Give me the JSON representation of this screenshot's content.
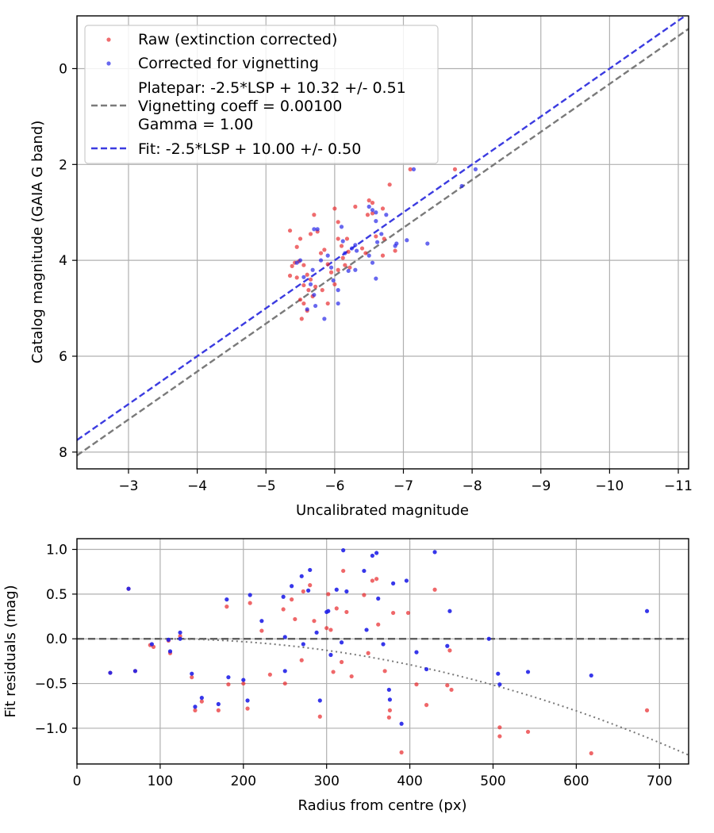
{
  "chart_data": [
    {
      "type": "scatter",
      "title": "",
      "xlabel": "Uncalibrated magnitude",
      "ylabel": "Catalog magnitude (GAIA G band)",
      "xlim": [
        -2.25,
        -11.15
      ],
      "ylim": [
        8.35,
        -1.1
      ],
      "x_inverted": true,
      "y_inverted": true,
      "grid": true,
      "legend_position": "upper-left",
      "x_ticks": [
        -3,
        -4,
        -5,
        -6,
        -7,
        -8,
        -9,
        -10,
        -11
      ],
      "x_tick_labels": [
        "−3",
        "−4",
        "−5",
        "−6",
        "−7",
        "−8",
        "−9",
        "−10",
        "−11"
      ],
      "y_ticks": [
        0,
        2,
        4,
        6,
        8
      ],
      "y_tick_labels": [
        "0",
        "2",
        "4",
        "6",
        "8"
      ],
      "colors": {
        "raw": "#e8262a",
        "corrected": "#2121e8",
        "platepar": "#7a7a7a",
        "fit": "#3b3be0"
      },
      "series": [
        {
          "name": "Raw (extinction corrected)",
          "kind": "points",
          "color": "#e8262a",
          "points": [
            [
              -5.35,
              3.38
            ],
            [
              -5.5,
              3.55
            ],
            [
              -5.45,
              3.72
            ],
            [
              -5.65,
              3.45
            ],
            [
              -5.7,
              3.05
            ],
            [
              -5.75,
              3.4
            ],
            [
              -5.42,
              4.05
            ],
            [
              -5.38,
              4.12
            ],
            [
              -5.48,
              4.02
            ],
            [
              -5.55,
              4.1
            ],
            [
              -5.35,
              4.32
            ],
            [
              -5.45,
              4.36
            ],
            [
              -5.6,
              4.3
            ],
            [
              -5.55,
              4.52
            ],
            [
              -5.62,
              4.62
            ],
            [
              -5.5,
              4.82
            ],
            [
              -5.55,
              4.9
            ],
            [
              -5.6,
              5.05
            ],
            [
              -5.52,
              5.22
            ],
            [
              -5.68,
              4.75
            ],
            [
              -5.72,
              4.55
            ],
            [
              -5.65,
              4.4
            ],
            [
              -5.8,
              3.85
            ],
            [
              -5.85,
              3.78
            ],
            [
              -5.9,
              4.08
            ],
            [
              -5.95,
              4.25
            ],
            [
              -5.82,
              4.62
            ],
            [
              -6.0,
              2.92
            ],
            [
              -6.05,
              3.2
            ],
            [
              -6.05,
              3.55
            ],
            [
              -6.1,
              3.7
            ],
            [
              -6.12,
              3.95
            ],
            [
              -6.05,
              4.2
            ],
            [
              -6.18,
              3.55
            ],
            [
              -6.2,
              3.82
            ],
            [
              -6.22,
              4.15
            ],
            [
              -6.0,
              4.5
            ],
            [
              -6.3,
              2.88
            ],
            [
              -6.4,
              3.75
            ],
            [
              -6.45,
              3.85
            ],
            [
              -6.48,
              3.05
            ],
            [
              -6.5,
              2.75
            ],
            [
              -6.55,
              2.8
            ],
            [
              -6.55,
              3.02
            ],
            [
              -6.6,
              3.5
            ],
            [
              -6.7,
              2.92
            ],
            [
              -6.72,
              3.55
            ],
            [
              -6.7,
              3.9
            ],
            [
              -6.8,
              2.42
            ],
            [
              -6.88,
              3.8
            ],
            [
              -7.1,
              2.1
            ],
            [
              -7.75,
              2.1
            ],
            [
              -6.15,
              4.1
            ],
            [
              -5.9,
              4.9
            ]
          ]
        },
        {
          "name": "Corrected for vignetting",
          "kind": "points",
          "color": "#2121e8",
          "points": [
            [
              -5.45,
              4.05
            ],
            [
              -5.5,
              4.0
            ],
            [
              -5.55,
              4.35
            ],
            [
              -5.65,
              4.5
            ],
            [
              -5.7,
              4.72
            ],
            [
              -5.72,
              4.95
            ],
            [
              -5.6,
              5.02
            ],
            [
              -5.8,
              4.0
            ],
            [
              -5.85,
              5.22
            ],
            [
              -5.7,
              3.35
            ],
            [
              -5.75,
              3.35
            ],
            [
              -5.9,
              3.9
            ],
            [
              -5.95,
              4.15
            ],
            [
              -5.98,
              4.42
            ],
            [
              -6.05,
              4.62
            ],
            [
              -6.05,
              4.9
            ],
            [
              -6.1,
              3.3
            ],
            [
              -6.12,
              3.6
            ],
            [
              -6.15,
              3.85
            ],
            [
              -6.2,
              4.22
            ],
            [
              -6.25,
              3.75
            ],
            [
              -6.3,
              3.68
            ],
            [
              -6.32,
              3.8
            ],
            [
              -6.5,
              2.88
            ],
            [
              -6.55,
              2.95
            ],
            [
              -6.6,
              3.0
            ],
            [
              -6.6,
              3.18
            ],
            [
              -6.62,
              3.62
            ],
            [
              -6.68,
              3.45
            ],
            [
              -6.5,
              3.9
            ],
            [
              -6.55,
              4.05
            ],
            [
              -6.6,
              4.38
            ],
            [
              -6.3,
              4.2
            ],
            [
              -6.75,
              3.05
            ],
            [
              -6.88,
              3.7
            ],
            [
              -6.9,
              3.65
            ],
            [
              -7.05,
              3.58
            ],
            [
              -7.15,
              2.1
            ],
            [
              -7.35,
              3.65
            ],
            [
              -7.85,
              2.45
            ],
            [
              -8.05,
              2.1
            ],
            [
              -5.68,
              4.2
            ]
          ]
        },
        {
          "name": "Platepar: -2.5*LSP + 10.32 +/- 0.51\nVignetting coeff = 0.00100\nGamma = 1.00",
          "kind": "line",
          "style": "dashed",
          "color": "#7a7a7a",
          "slope": 1.0,
          "intercept": 10.32,
          "label_lines": [
            "Platepar: -2.5*LSP + 10.32 +/- 0.51",
            "Vignetting coeff = 0.00100",
            "Gamma = 1.00"
          ]
        },
        {
          "name": "Fit: -2.5*LSP + 10.00 +/- 0.50",
          "kind": "line",
          "style": "dashed",
          "color": "#3b3be0",
          "slope": 1.0,
          "intercept": 10.0,
          "label_lines": [
            "Fit: -2.5*LSP + 10.00 +/- 0.50"
          ]
        }
      ]
    },
    {
      "type": "scatter",
      "title": "",
      "xlabel": "Radius from centre (px)",
      "ylabel": "Fit residuals (mag)",
      "xlim": [
        0,
        735
      ],
      "ylim": [
        -1.4,
        1.12
      ],
      "grid": true,
      "x_ticks": [
        0,
        100,
        200,
        300,
        400,
        500,
        600,
        700
      ],
      "x_tick_labels": [
        "0",
        "100",
        "200",
        "300",
        "400",
        "500",
        "600",
        "700"
      ],
      "y_ticks": [
        1.0,
        0.5,
        0.0,
        -0.5,
        -1.0
      ],
      "y_tick_labels": [
        "1.0",
        "0.5",
        "0.0",
        "−0.5",
        "−1.0"
      ],
      "colors": {
        "raw": "#e8262a",
        "corrected": "#2121e8",
        "zero_line": "#555555",
        "vignetting_curve": "#777777"
      },
      "zero_line": 0.0,
      "vignetting_curve_coeff": 0.001,
      "series": [
        {
          "kind": "points",
          "color": "#e8262a",
          "points": [
            [
              40,
              -0.38
            ],
            [
              62,
              0.56
            ],
            [
              70,
              -0.36
            ],
            [
              88,
              -0.07
            ],
            [
              92,
              -0.09
            ],
            [
              110,
              -0.02
            ],
            [
              112,
              -0.16
            ],
            [
              124,
              0.03
            ],
            [
              138,
              -0.43
            ],
            [
              142,
              -0.8
            ],
            [
              150,
              -0.7
            ],
            [
              170,
              -0.8
            ],
            [
              180,
              0.36
            ],
            [
              182,
              -0.51
            ],
            [
              200,
              -0.5
            ],
            [
              205,
              -0.78
            ],
            [
              208,
              0.4
            ],
            [
              222,
              0.09
            ],
            [
              248,
              0.33
            ],
            [
              250,
              -0.5
            ],
            [
              258,
              0.44
            ],
            [
              262,
              0.22
            ],
            [
              270,
              -0.24
            ],
            [
              272,
              0.53
            ],
            [
              280,
              0.6
            ],
            [
              285,
              0.2
            ],
            [
              292,
              -0.87
            ],
            [
              300,
              0.12
            ],
            [
              302,
              0.5
            ],
            [
              305,
              0.1
            ],
            [
              308,
              -0.37
            ],
            [
              312,
              0.34
            ],
            [
              318,
              -0.26
            ],
            [
              320,
              0.76
            ],
            [
              324,
              0.3
            ],
            [
              330,
              -0.42
            ],
            [
              345,
              0.49
            ],
            [
              350,
              -0.16
            ],
            [
              355,
              0.65
            ],
            [
              360,
              0.67
            ],
            [
              362,
              0.16
            ],
            [
              370,
              -0.36
            ],
            [
              375,
              -0.88
            ],
            [
              380,
              0.29
            ],
            [
              390,
              -1.27
            ],
            [
              398,
              0.29
            ],
            [
              408,
              -0.51
            ],
            [
              420,
              -0.74
            ],
            [
              430,
              0.55
            ],
            [
              445,
              -0.52
            ],
            [
              450,
              -0.57
            ],
            [
              448,
              -0.13
            ],
            [
              508,
              -0.99
            ],
            [
              508,
              -1.09
            ],
            [
              542,
              -1.04
            ],
            [
              618,
              -1.28
            ],
            [
              685,
              -0.8
            ],
            [
              376,
              -0.8
            ],
            [
              232,
              -0.4
            ]
          ]
        },
        {
          "kind": "points",
          "color": "#2121e8",
          "points": [
            [
              40,
              -0.38
            ],
            [
              62,
              0.56
            ],
            [
              70,
              -0.36
            ],
            [
              90,
              -0.06
            ],
            [
              110,
              -0.01
            ],
            [
              112,
              -0.14
            ],
            [
              124,
              0.07
            ],
            [
              124,
              0.0
            ],
            [
              138,
              -0.39
            ],
            [
              142,
              -0.76
            ],
            [
              150,
              -0.66
            ],
            [
              170,
              -0.73
            ],
            [
              180,
              0.44
            ],
            [
              182,
              -0.43
            ],
            [
              200,
              -0.46
            ],
            [
              205,
              -0.69
            ],
            [
              208,
              0.49
            ],
            [
              222,
              0.2
            ],
            [
              248,
              0.47
            ],
            [
              250,
              0.02
            ],
            [
              250,
              -0.36
            ],
            [
              258,
              0.59
            ],
            [
              270,
              0.7
            ],
            [
              278,
              0.54
            ],
            [
              280,
              0.77
            ],
            [
              288,
              0.07
            ],
            [
              292,
              -0.69
            ],
            [
              300,
              0.3
            ],
            [
              302,
              0.31
            ],
            [
              305,
              -0.18
            ],
            [
              312,
              0.55
            ],
            [
              318,
              -0.04
            ],
            [
              320,
              0.99
            ],
            [
              324,
              0.53
            ],
            [
              345,
              0.76
            ],
            [
              348,
              0.1
            ],
            [
              355,
              0.93
            ],
            [
              360,
              0.96
            ],
            [
              362,
              0.45
            ],
            [
              368,
              -0.06
            ],
            [
              375,
              -0.57
            ],
            [
              376,
              -0.68
            ],
            [
              380,
              0.62
            ],
            [
              390,
              -0.95
            ],
            [
              396,
              0.65
            ],
            [
              408,
              -0.15
            ],
            [
              420,
              -0.34
            ],
            [
              430,
              0.97
            ],
            [
              445,
              -0.08
            ],
            [
              448,
              0.31
            ],
            [
              495,
              0.0
            ],
            [
              506,
              -0.39
            ],
            [
              508,
              -0.51
            ],
            [
              542,
              -0.37
            ],
            [
              618,
              -0.41
            ],
            [
              685,
              0.31
            ],
            [
              272,
              -0.06
            ]
          ]
        }
      ]
    }
  ]
}
